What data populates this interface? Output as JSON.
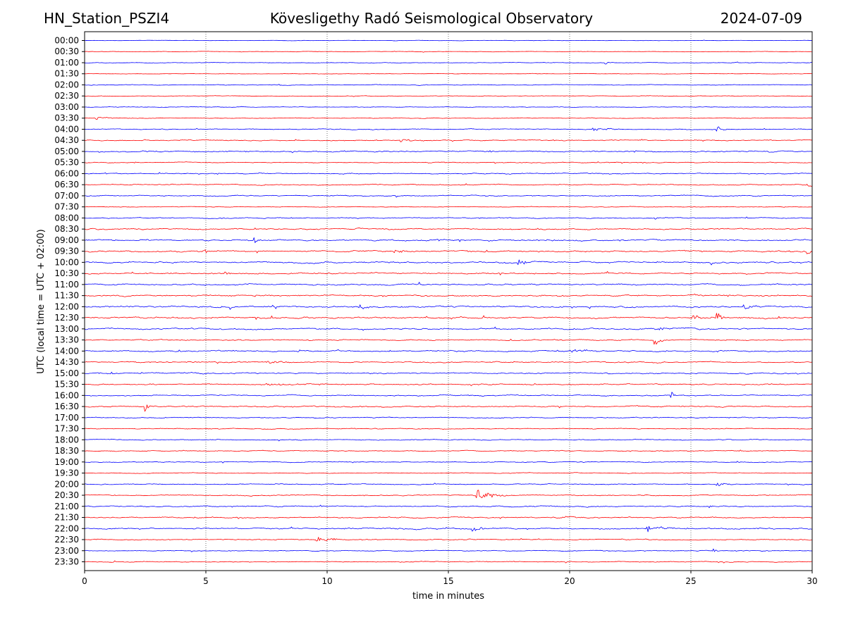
{
  "header": {
    "station": "HN_Station_PSZI4",
    "observatory": "Kövesligethy Radó Seismological Observatory",
    "date": "2024-07-09"
  },
  "chart_data": {
    "type": "line",
    "title": "Kövesligethy Radó Seismological Observatory",
    "xlabel": "time in minutes",
    "ylabel": "UTC (local time = UTC + 02:00)",
    "xlim": [
      0,
      30
    ],
    "xticks": [
      "0",
      "5",
      "10",
      "15",
      "20",
      "25",
      "30"
    ],
    "xtick_values": [
      0,
      5,
      10,
      15,
      20,
      25,
      30
    ],
    "grid": "vertical dotted at x ticks",
    "series_colors": [
      "#0000ff",
      "#ff0000"
    ],
    "rows": [
      "00:00",
      "00:30",
      "01:00",
      "01:30",
      "02:00",
      "02:30",
      "03:00",
      "03:30",
      "04:00",
      "04:30",
      "05:00",
      "05:30",
      "06:00",
      "06:30",
      "07:00",
      "07:30",
      "08:00",
      "08:30",
      "09:00",
      "09:30",
      "10:00",
      "10:30",
      "11:00",
      "11:30",
      "12:00",
      "12:30",
      "13:00",
      "13:30",
      "14:00",
      "14:30",
      "15:00",
      "15:30",
      "16:00",
      "16:30",
      "17:00",
      "17:30",
      "18:00",
      "18:30",
      "19:00",
      "19:30",
      "20:00",
      "20:30",
      "21:00",
      "21:30",
      "22:00",
      "22:30",
      "23:00",
      "23:30"
    ],
    "noise_level": [
      0.3,
      0.3,
      0.4,
      0.3,
      0.5,
      0.4,
      0.4,
      0.5,
      0.6,
      0.7,
      0.9,
      0.6,
      0.7,
      0.7,
      0.7,
      0.4,
      0.7,
      0.9,
      1.0,
      1.0,
      1.0,
      0.9,
      1.0,
      1.0,
      1.1,
      1.1,
      1.0,
      0.8,
      0.9,
      0.8,
      0.9,
      0.8,
      0.8,
      0.9,
      0.7,
      0.6,
      0.6,
      0.6,
      0.6,
      0.5,
      0.6,
      0.7,
      0.7,
      0.8,
      0.9,
      0.7,
      0.6,
      0.6
    ],
    "events": [
      {
        "row": "01:00",
        "minute": 21.5,
        "amplitude": 2.5,
        "duration": 0.4
      },
      {
        "row": "03:30",
        "minute": 0.5,
        "amplitude": 2.0,
        "duration": 1.0
      },
      {
        "row": "04:00",
        "minute": 26.1,
        "amplitude": 4.0,
        "duration": 0.4
      },
      {
        "row": "04:00",
        "minute": 21.0,
        "amplitude": 2.0,
        "duration": 1.5
      },
      {
        "row": "04:30",
        "minute": 13.0,
        "amplitude": 2.0,
        "duration": 1.5
      },
      {
        "row": "06:30",
        "minute": 29.8,
        "amplitude": 3.0,
        "duration": 0.5
      },
      {
        "row": "08:00",
        "minute": 23.5,
        "amplitude": 3.0,
        "duration": 0.3
      },
      {
        "row": "09:00",
        "minute": 7.0,
        "amplitude": 6.0,
        "duration": 0.3
      },
      {
        "row": "09:30",
        "minute": 29.8,
        "amplitude": 4.0,
        "duration": 0.6
      },
      {
        "row": "09:30",
        "minute": 12.8,
        "amplitude": 2.5,
        "duration": 1.2
      },
      {
        "row": "10:00",
        "minute": 17.9,
        "amplitude": 6.0,
        "duration": 0.4
      },
      {
        "row": "10:30",
        "minute": 5.8,
        "amplitude": 4.0,
        "duration": 0.3
      },
      {
        "row": "12:00",
        "minute": 11.3,
        "amplitude": 5.0,
        "duration": 0.5
      },
      {
        "row": "12:00",
        "minute": 27.2,
        "amplitude": 3.5,
        "duration": 0.5
      },
      {
        "row": "12:30",
        "minute": 26.1,
        "amplitude": 9.0,
        "duration": 0.3
      },
      {
        "row": "12:30",
        "minute": 25.1,
        "amplitude": 3.5,
        "duration": 0.8
      },
      {
        "row": "13:00",
        "minute": 23.5,
        "amplitude": 3.0,
        "duration": 1.0
      },
      {
        "row": "13:30",
        "minute": 23.5,
        "amplitude": 8.0,
        "duration": 0.5
      },
      {
        "row": "14:00",
        "minute": 20.0,
        "amplitude": 2.0,
        "duration": 2.0
      },
      {
        "row": "14:30",
        "minute": 7.5,
        "amplitude": 2.0,
        "duration": 1.5
      },
      {
        "row": "15:30",
        "minute": 7.5,
        "amplitude": 2.0,
        "duration": 1.5
      },
      {
        "row": "16:00",
        "minute": 24.2,
        "amplitude": 5.0,
        "duration": 0.3
      },
      {
        "row": "16:30",
        "minute": 2.5,
        "amplitude": 7.0,
        "duration": 0.3
      },
      {
        "row": "20:00",
        "minute": 26.0,
        "amplitude": 2.5,
        "duration": 1.0
      },
      {
        "row": "20:30",
        "minute": 16.2,
        "amplitude": 8.0,
        "duration": 1.2
      },
      {
        "row": "21:00",
        "minute": 25.8,
        "amplitude": 2.5,
        "duration": 0.3
      },
      {
        "row": "21:30",
        "minute": 19.5,
        "amplitude": 2.0,
        "duration": 1.5
      },
      {
        "row": "22:00",
        "minute": 23.2,
        "amplitude": 5.0,
        "duration": 1.2
      },
      {
        "row": "22:00",
        "minute": 16.0,
        "amplitude": 4.0,
        "duration": 0.8
      },
      {
        "row": "22:30",
        "minute": 9.6,
        "amplitude": 4.0,
        "duration": 1.2
      },
      {
        "row": "23:00",
        "minute": 25.9,
        "amplitude": 3.5,
        "duration": 0.3
      }
    ]
  }
}
